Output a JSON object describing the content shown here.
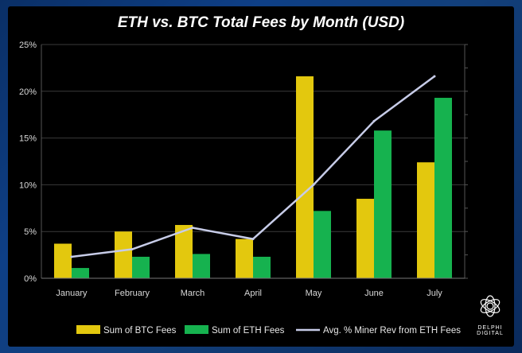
{
  "chart_data": {
    "type": "bar",
    "title": "ETH vs. BTC Total Fees by Month (USD)",
    "categories": [
      "January",
      "February",
      "March",
      "April",
      "May",
      "June",
      "July"
    ],
    "series": [
      {
        "name": "Sum of BTC Fees",
        "kind": "bar",
        "color": "#e3c80e",
        "values": [
          3.7,
          5.0,
          5.7,
          4.2,
          21.6,
          8.5,
          12.4
        ]
      },
      {
        "name": "Sum of ETH Fees",
        "kind": "bar",
        "color": "#16b24f",
        "values": [
          1.1,
          2.3,
          2.6,
          2.3,
          7.2,
          15.8,
          19.3
        ]
      },
      {
        "name": "Avg. % Miner Rev from ETH Fees",
        "kind": "line",
        "color": "#c7cce8",
        "values": [
          2.3,
          3.1,
          5.4,
          4.2,
          10.0,
          16.8,
          21.6
        ]
      }
    ],
    "yticks": [
      "0%",
      "5%",
      "10%",
      "15%",
      "20%",
      "25%"
    ],
    "ylim": [
      0,
      25
    ],
    "legend_position": "bottom"
  },
  "logo": {
    "text": "DELPHI DIGITAL",
    "icon": "delphi-logo-icon"
  }
}
